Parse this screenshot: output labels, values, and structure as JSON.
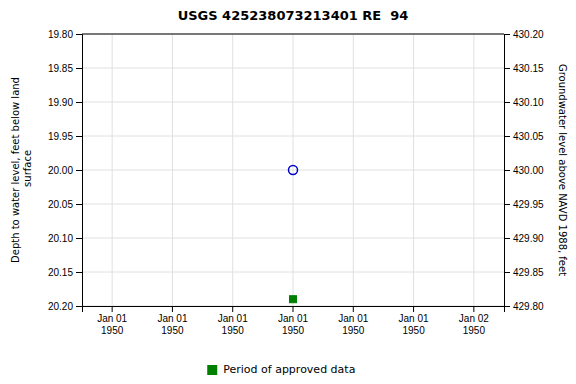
{
  "chart_data": {
    "type": "scatter",
    "title": "USGS 425238073213401 RE  94",
    "ylabel": "Depth to water level, feet below land\n surface",
    "y2label": "Groundwater level above NAVD 1988, feet",
    "categories": [
      "Jan 01\n1950",
      "Jan 01\n1950",
      "Jan 01\n1950",
      "Jan 01\n1950",
      "Jan 01\n1950",
      "Jan 01\n1950",
      "Jan 02\n1950"
    ],
    "series": [
      {
        "color": "#0000cc",
        "marker": "circle",
        "values": [
          null,
          null,
          null,
          20.0,
          null,
          null,
          null
        ]
      },
      {
        "name": "Period of approved data",
        "color": "#008000",
        "marker": "square",
        "values": [
          null,
          null,
          null,
          20.19,
          null,
          null,
          null
        ]
      }
    ],
    "ylim": [
      20.2,
      19.8
    ],
    "yticks": [
      {
        "value": 19.8,
        "label": "19.80"
      },
      {
        "value": 19.85,
        "label": "19.85"
      },
      {
        "value": 19.9,
        "label": "19.90"
      },
      {
        "value": 19.95,
        "label": "19.95"
      },
      {
        "value": 20.0,
        "label": "20.00"
      },
      {
        "value": 20.05,
        "label": "20.05"
      },
      {
        "value": 20.1,
        "label": "20.10"
      },
      {
        "value": 20.15,
        "label": "20.15"
      },
      {
        "value": 20.2,
        "label": "20.20"
      }
    ],
    "y2lim": [
      429.8,
      430.2
    ],
    "y2ticks": [
      {
        "value": 430.2,
        "label": "430.20"
      },
      {
        "value": 430.15,
        "label": "430.15"
      },
      {
        "value": 430.1,
        "label": "430.10"
      },
      {
        "value": 430.05,
        "label": "430.05"
      },
      {
        "value": 430.0,
        "label": "430.00"
      },
      {
        "value": 429.95,
        "label": "429.95"
      },
      {
        "value": 429.9,
        "label": "429.90"
      },
      {
        "value": 429.85,
        "label": "429.85"
      },
      {
        "value": 429.8,
        "label": "429.80"
      }
    ],
    "grid": true,
    "legend": "bottom"
  }
}
